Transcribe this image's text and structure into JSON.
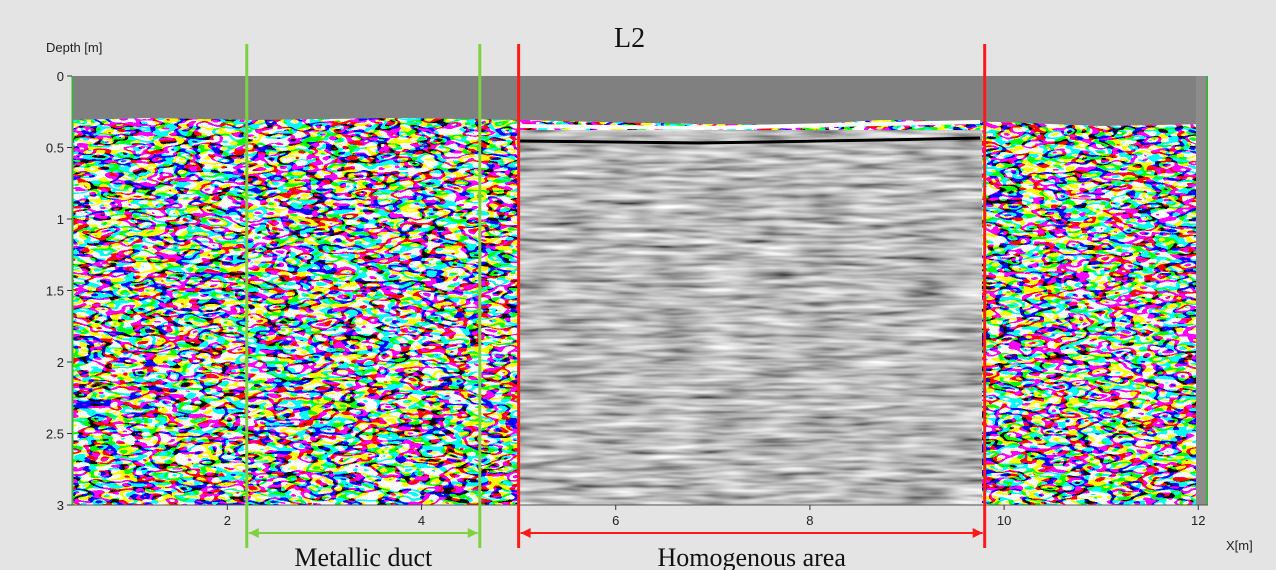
{
  "chart_data": {
    "type": "heatmap",
    "title": "L2",
    "xlabel": "X[m]",
    "ylabel": "Depth [m]",
    "xlim": [
      0.4,
      12.1
    ],
    "ylim": [
      0,
      3
    ],
    "y_inverted": true,
    "grid": false,
    "x_ticks": [
      2,
      4,
      6,
      8,
      10,
      12
    ],
    "y_ticks": [
      0,
      0.5,
      1,
      1.5,
      2,
      2.5,
      3
    ],
    "colormap": "grayscale",
    "annotations": [
      {
        "label": "Metallic duct",
        "x_start": 2.2,
        "x_end": 4.6,
        "color": "#7ed23f"
      },
      {
        "label": "Homogenous area",
        "x_start": 5.0,
        "x_end": 9.8,
        "color": "#ff1a1a"
      }
    ]
  },
  "colors": {
    "duct_marker": "#7ed23f",
    "homogenous_marker": "#ff1a1a",
    "frame_edge": "#3fb03f",
    "air_gap": "#808080"
  }
}
